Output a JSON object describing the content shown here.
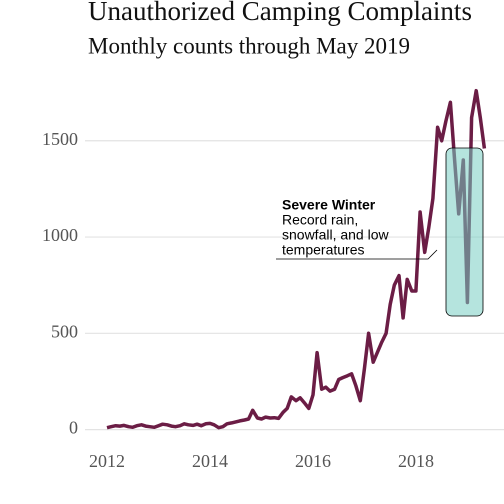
{
  "chart_data": {
    "type": "line",
    "title": "Unauthorized Camping Complaints",
    "subtitle": "Monthly counts through May 2019",
    "annotation_title": "Severe Winter",
    "annotation_lines": [
      "Record rain,",
      "snowfall, and low",
      "temperatures"
    ],
    "x": [
      2012.0,
      2012.08,
      2012.17,
      2012.25,
      2012.33,
      2012.42,
      2012.5,
      2012.58,
      2012.67,
      2012.75,
      2012.83,
      2012.92,
      2013.0,
      2013.08,
      2013.17,
      2013.25,
      2013.33,
      2013.42,
      2013.5,
      2013.58,
      2013.67,
      2013.75,
      2013.83,
      2013.92,
      2014.0,
      2014.08,
      2014.17,
      2014.25,
      2014.33,
      2014.42,
      2014.5,
      2014.58,
      2014.67,
      2014.75,
      2014.83,
      2014.92,
      2015.0,
      2015.08,
      2015.17,
      2015.25,
      2015.33,
      2015.42,
      2015.5,
      2015.58,
      2015.67,
      2015.75,
      2015.83,
      2015.92,
      2016.0,
      2016.08,
      2016.17,
      2016.25,
      2016.33,
      2016.42,
      2016.5,
      2016.58,
      2016.67,
      2016.75,
      2016.83,
      2016.92,
      2017.0,
      2017.08,
      2017.17,
      2017.25,
      2017.33,
      2017.42,
      2017.5,
      2017.58,
      2017.67,
      2017.75,
      2017.83,
      2017.92,
      2018.0,
      2018.08,
      2018.17,
      2018.25,
      2018.33,
      2018.42,
      2018.5,
      2018.58,
      2018.67,
      2018.75,
      2018.83,
      2018.92,
      2019.0,
      2019.08,
      2019.17,
      2019.25,
      2019.33
    ],
    "series": [
      {
        "name": "Complaints",
        "color": "#6b1d45",
        "values": [
          10,
          15,
          20,
          18,
          22,
          15,
          12,
          20,
          25,
          18,
          15,
          12,
          20,
          28,
          25,
          18,
          15,
          20,
          30,
          25,
          22,
          28,
          20,
          30,
          32,
          25,
          10,
          15,
          30,
          35,
          40,
          45,
          50,
          55,
          100,
          60,
          55,
          65,
          60,
          62,
          58,
          90,
          110,
          170,
          150,
          165,
          140,
          110,
          180,
          400,
          210,
          220,
          200,
          210,
          260,
          270,
          280,
          290,
          230,
          150,
          320,
          500,
          350,
          400,
          450,
          500,
          650,
          750,
          800,
          580,
          780,
          720,
          720,
          1130,
          920,
          1050,
          1200,
          1570,
          1500,
          1600,
          1700,
          1400,
          1120,
          1400,
          660,
          1620,
          1760,
          1620,
          1460
        ]
      }
    ],
    "xlim": [
      2011.67,
      2019.71
    ],
    "xticks": [
      2012,
      2014,
      2016,
      2018
    ],
    "ylim": [
      -80,
      1800
    ],
    "yticks": [
      0,
      500,
      1000,
      1500
    ],
    "grid": true
  }
}
